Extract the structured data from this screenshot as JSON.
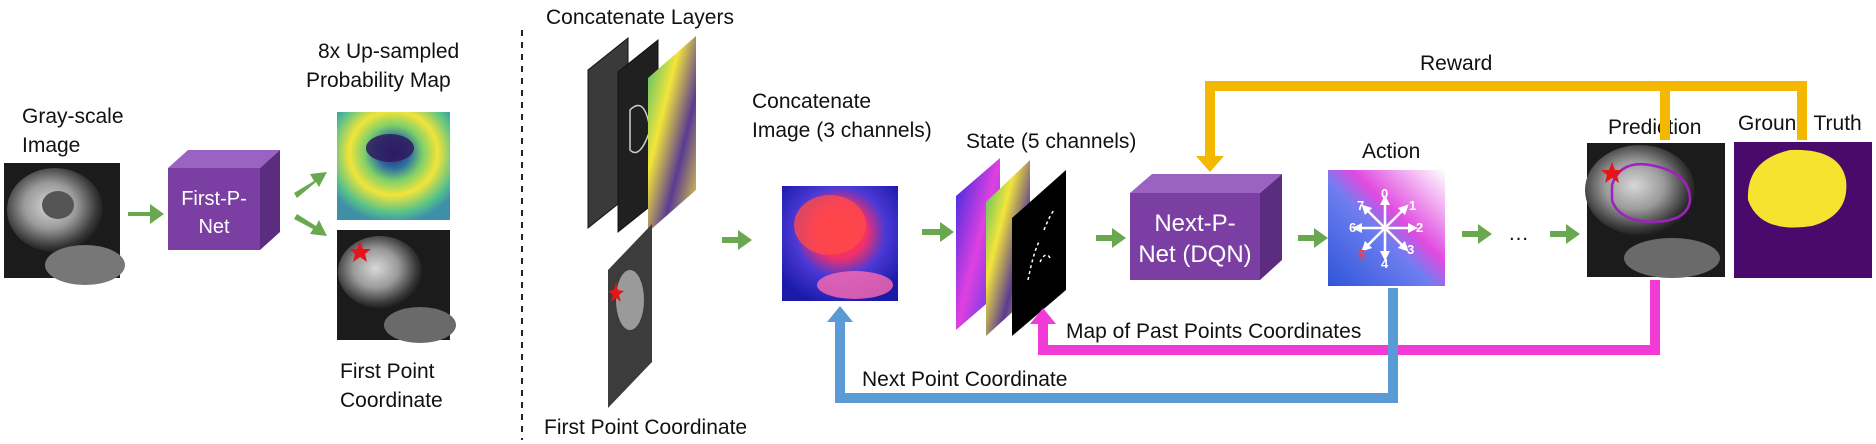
{
  "labels": {
    "gray_scale_line1": "Gray-scale",
    "gray_scale_line2": "Image",
    "first_p_net_line1": "First-P-",
    "first_p_net_line2": "Net",
    "upsampled_line1": "8x Up-sampled",
    "upsampled_line2": "Probability Map",
    "first_point_line1": "First Point",
    "first_point_line2": "Coordinate",
    "concat_layers": "Concatenate Layers",
    "first_point_coord": "First Point Coordinate",
    "concat_image_line1": "Concatenate",
    "concat_image_line2": "Image (3 channels)",
    "state": "State (5 channels)",
    "next_p_net_line1": "Next-P-",
    "next_p_net_line2": "Net (DQN)",
    "action": "Action",
    "ellipsis": "…",
    "prediction": "Prediction",
    "ground_truth": "Ground Truth",
    "reward": "Reward",
    "map_past_points": "Map of Past Points Coordinates",
    "next_point_coordinate": "Next Point Coordinate"
  },
  "action_directions": [
    "0",
    "1",
    "2",
    "3",
    "4",
    "5",
    "6",
    "7"
  ],
  "colors": {
    "net_box": "#7b3fa3",
    "net_box_top": "#9a63c2",
    "net_box_side": "#5c2c80",
    "flow_arrow": "#6aa84f",
    "reward_arrow": "#f5b800",
    "past_points_arrow": "#f23ad6",
    "next_point_arrow": "#5b9bd5",
    "star": "#e8141c",
    "ground_truth_bg": "#4a0a6b",
    "ground_truth_fg": "#f8e230"
  }
}
